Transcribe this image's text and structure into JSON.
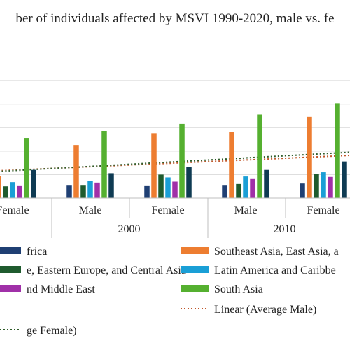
{
  "chart_data": {
    "type": "bar",
    "title": "ber of individuals affected by MSVI 1990-2020, male vs. fe",
    "categories": [
      "Female",
      "Male",
      "Female",
      "Male",
      "Female"
    ],
    "groups": [
      {
        "label": "2000",
        "span": [
          1,
          2
        ]
      },
      {
        "label": "2010",
        "span": [
          3,
          4
        ]
      }
    ],
    "ylim": [
      0,
      280
    ],
    "grid": true,
    "legend_position": "bottom",
    "series": [
      {
        "name": "frica",
        "color": "#1f3f73",
        "values": [
          33,
          28,
          27,
          28,
          31
        ]
      },
      {
        "name": "Southeast Asia, East Asia, a",
        "color": "#ed7d31",
        "values": [
          47,
          113,
          138,
          140,
          173
        ]
      },
      {
        "name": "e, Eastern Europe, and Central Asia",
        "color": "#1f5b2e",
        "values": [
          25,
          28,
          50,
          30,
          52
        ]
      },
      {
        "name": "Latin America and Caribbe",
        "color": "#1a9fd6",
        "values": [
          34,
          37,
          44,
          46,
          55
        ]
      },
      {
        "name": "nd Middle East",
        "color": "#a030a8",
        "values": [
          27,
          33,
          35,
          42,
          45
        ]
      },
      {
        "name": "South Asia",
        "color": "#55b030",
        "values": [
          128,
          143,
          158,
          178,
          202
        ]
      },
      {
        "name": "",
        "color": "#0f3b53",
        "values": [
          60,
          53,
          67,
          60,
          78
        ]
      }
    ],
    "trendlines": [
      {
        "name": "Linear (Average Male)",
        "color": "#c0562a",
        "dash": "2,3",
        "from": [
          0,
          56
        ],
        "to": [
          5,
          92
        ]
      },
      {
        "name": "ge Female)",
        "color": "#2f5c2a",
        "dash": "2,3",
        "from": [
          0,
          54
        ],
        "to": [
          5,
          99
        ]
      }
    ]
  }
}
